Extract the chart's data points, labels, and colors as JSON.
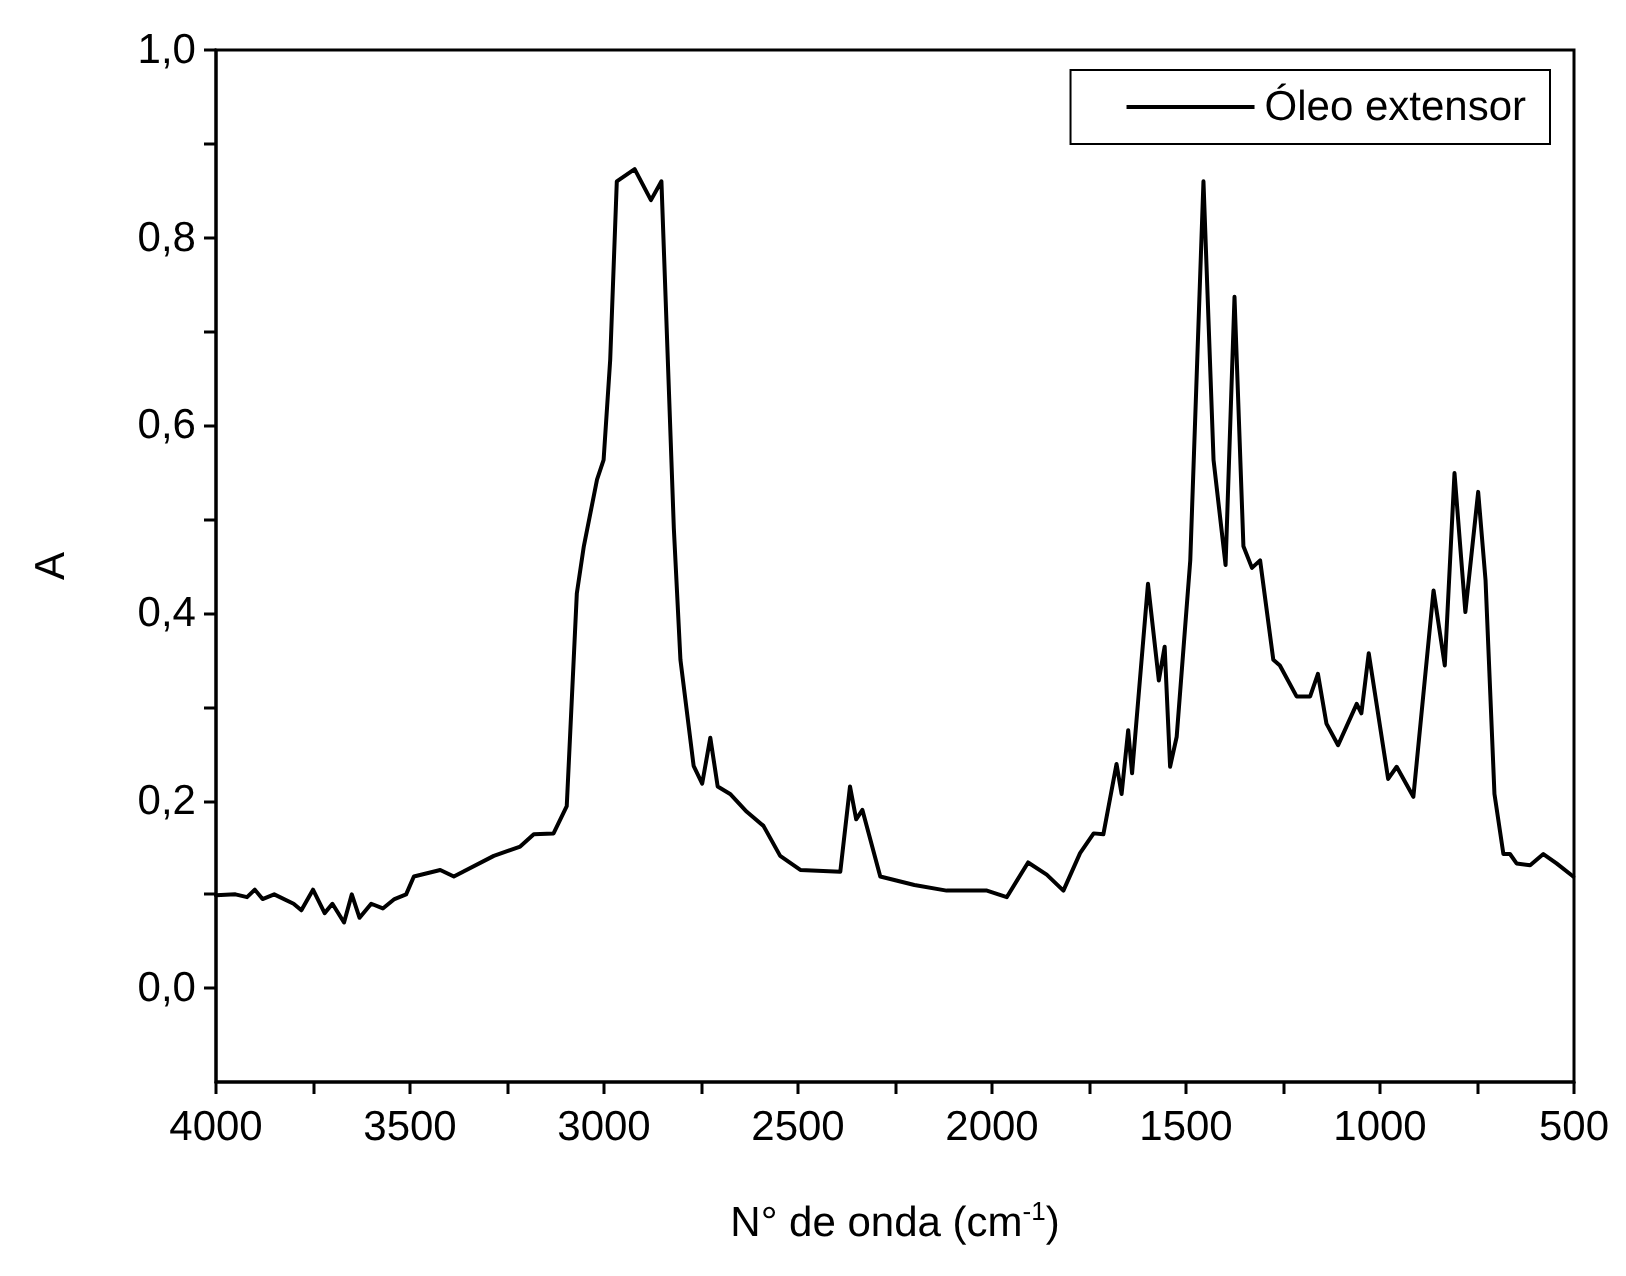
{
  "chart_data": {
    "type": "line",
    "xlabel": "N° de onda (cm$^{-1}$)",
    "ylabel": "A",
    "xlim": [
      4000,
      500
    ],
    "xticks": [
      4000,
      {
        "value": 3750,
        "label": null
      },
      3500,
      {
        "value": 3250,
        "label": null
      },
      3000,
      {
        "value": 2750,
        "label": null
      },
      2500,
      {
        "value": 2250,
        "label": null
      },
      2000,
      {
        "value": 1750,
        "label": null
      },
      1500,
      {
        "value": 1250,
        "label": null
      },
      1000,
      {
        "value": 750,
        "label": null
      },
      500
    ],
    "ylim": [
      -0.1,
      1.0
    ],
    "yticks": [
      {
        "value": 0,
        "label": "0,0"
      },
      {
        "value": 0.1,
        "label": null
      },
      {
        "value": 0.2,
        "label": "0,2"
      },
      {
        "value": 0.3,
        "label": null
      },
      {
        "value": 0.4,
        "label": "0,4"
      },
      {
        "value": 0.5,
        "label": null
      },
      {
        "value": 0.6,
        "label": "0,6"
      },
      {
        "value": 0.7,
        "label": null
      },
      {
        "value": 0.8,
        "label": "0,8"
      },
      {
        "value": 0.9,
        "label": null
      },
      {
        "value": 1.0,
        "label": "1,0"
      }
    ],
    "grid": false,
    "legend": "top right",
    "marker": "none",
    "line_style": "solid",
    "series": [
      {
        "name": "Óleo extensor",
        "color": "#000000",
        "x": [
          4000,
          3950,
          3920,
          3900,
          3880,
          3850,
          3800,
          3780,
          3750,
          3720,
          3700,
          3670,
          3650,
          3630,
          3600,
          3570,
          3540,
          3510,
          3490,
          3422,
          3387,
          3284,
          3216,
          3181,
          3130,
          3096,
          3070,
          3052,
          3018,
          3001,
          2984,
          2967,
          2921,
          2879,
          2852,
          2820,
          2803,
          2769,
          2747,
          2726,
          2707,
          2675,
          2632,
          2589,
          2546,
          2494,
          2391,
          2366,
          2350,
          2334,
          2288,
          2200,
          2117,
          2013,
          1962,
          1907,
          1859,
          1816,
          1773,
          1738,
          1713,
          1679,
          1666,
          1649,
          1639,
          1598,
          1570,
          1555,
          1541,
          1524,
          1489,
          1455,
          1429,
          1398,
          1375,
          1352,
          1330,
          1309,
          1275,
          1258,
          1215,
          1180,
          1160,
          1138,
          1108,
          1060,
          1048,
          1029,
          979,
          957,
          914,
          862,
          833,
          808,
          780,
          747,
          728,
          705,
          682,
          665,
          648,
          613,
          579,
          545,
          502
        ],
        "values": [
          0.099,
          0.1,
          0.097,
          0.105,
          0.095,
          0.1,
          0.09,
          0.083,
          0.105,
          0.08,
          0.09,
          0.07,
          0.1,
          0.075,
          0.09,
          0.085,
          0.095,
          0.1,
          0.119,
          0.126,
          0.119,
          0.141,
          0.151,
          0.164,
          0.165,
          0.194,
          0.421,
          0.471,
          0.542,
          0.563,
          0.67,
          0.86,
          0.873,
          0.84,
          0.86,
          0.49,
          0.35,
          0.237,
          0.218,
          0.267,
          0.215,
          0.207,
          0.188,
          0.173,
          0.141,
          0.126,
          0.124,
          0.215,
          0.18,
          0.19,
          0.119,
          0.11,
          0.104,
          0.104,
          0.097,
          0.134,
          0.121,
          0.104,
          0.144,
          0.165,
          0.164,
          0.239,
          0.207,
          0.275,
          0.229,
          0.431,
          0.328,
          0.364,
          0.236,
          0.268,
          0.456,
          0.86,
          0.563,
          0.451,
          0.737,
          0.471,
          0.448,
          0.456,
          0.35,
          0.344,
          0.311,
          0.311,
          0.335,
          0.282,
          0.259,
          0.303,
          0.293,
          0.357,
          0.223,
          0.236,
          0.204,
          0.424,
          0.344,
          0.549,
          0.401,
          0.529,
          0.435,
          0.207,
          0.143,
          0.143,
          0.133,
          0.131,
          0.143,
          0.133,
          0.119
        ]
      }
    ]
  }
}
